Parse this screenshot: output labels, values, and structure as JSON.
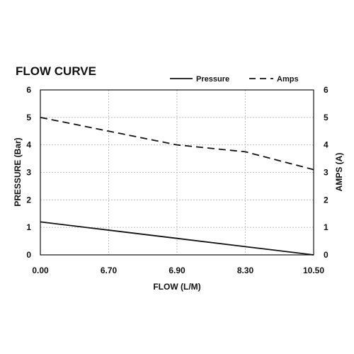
{
  "chart_data": {
    "type": "line",
    "title": "FLOW CURVE",
    "xlabel": "FLOW (L/M)",
    "ylabel_left": "PRESSURE (Bar)",
    "ylabel_right": "AMPS (A)",
    "categories": [
      "0.00",
      "6.70",
      "6.90",
      "8.30",
      "10.50"
    ],
    "ylim": [
      0,
      6
    ],
    "yticks": [
      0,
      1,
      2,
      3,
      4,
      5,
      6
    ],
    "grid": true,
    "legend_position": "top-right",
    "series": [
      {
        "name": "Pressure",
        "style": "solid",
        "axis": "left",
        "values": [
          1.2,
          0.9,
          0.6,
          0.3,
          0.0
        ]
      },
      {
        "name": "Amps",
        "style": "dashed",
        "axis": "right",
        "values": [
          5.0,
          4.5,
          4.0,
          3.75,
          3.1
        ]
      }
    ]
  }
}
